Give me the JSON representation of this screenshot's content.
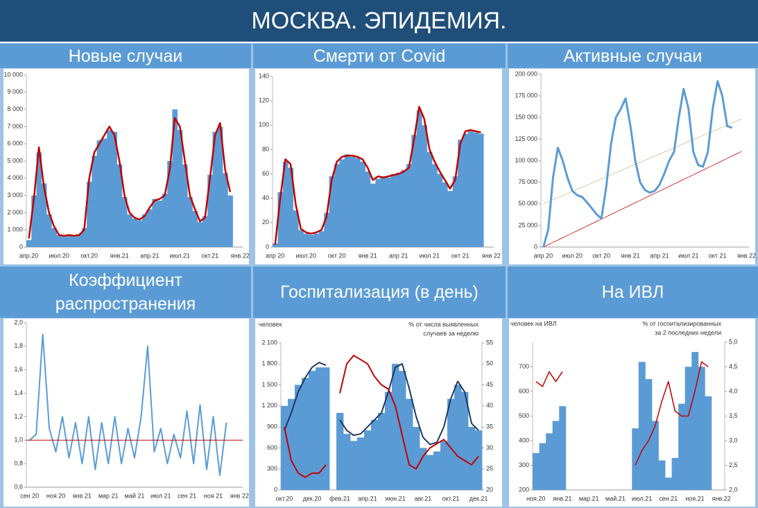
{
  "title": "МОСКВА. ЭПИДЕМИЯ.",
  "chart_data": [
    {
      "type": "bar",
      "title": "Новые случаи",
      "categories": [
        "апр.20",
        null,
        null,
        null,
        null,
        null,
        "июл.20",
        null,
        null,
        null,
        null,
        null,
        "окт.20",
        null,
        null,
        null,
        null,
        null,
        "янв.21",
        null,
        null,
        null,
        null,
        null,
        "апр.21",
        null,
        null,
        null,
        null,
        null,
        "июл.21",
        null,
        null,
        null,
        null,
        null,
        "окт.21",
        null,
        null,
        null,
        null,
        null,
        "янв.22"
      ],
      "ylim": [
        0,
        10000
      ],
      "yticks": [
        0,
        {
          "value": 1000,
          "label": "1 000"
        },
        {
          "value": 2000,
          "label": "2 000"
        },
        {
          "value": 3000,
          "label": "3 000"
        },
        {
          "value": 4000,
          "label": "4 000"
        },
        {
          "value": 5000,
          "label": "5 000"
        },
        {
          "value": 6000,
          "label": "6 000"
        },
        {
          "value": 7000,
          "label": "7 000"
        },
        {
          "value": 8000,
          "label": "8 000"
        },
        {
          "value": 9000,
          "label": "9 000"
        },
        {
          "value": 10000,
          "label": "10 000"
        }
      ],
      "series": [
        {
          "type": "bar",
          "color": "#5b9bd5",
          "values": [
            400,
            3000,
            5500,
            3700,
            1900,
            1100,
            700,
            600,
            650,
            600,
            750,
            1100,
            3800,
            5300,
            6200,
            6300,
            6800,
            6700,
            4800,
            2900,
            1900,
            1650,
            1550,
            1900,
            2200,
            2800,
            2700,
            3100,
            5000,
            8000,
            6800,
            4800,
            2900,
            2100,
            1450,
            1800,
            4200,
            6700,
            7000,
            4300,
            3000,
            null,
            null
          ]
        },
        {
          "type": "line",
          "color": "#c00000",
          "values": [
            500,
            2800,
            5800,
            3500,
            2000,
            1200,
            700,
            650,
            700,
            650,
            700,
            1000,
            4000,
            5500,
            6000,
            6500,
            7000,
            6500,
            5000,
            3000,
            2000,
            1700,
            1600,
            1800,
            2300,
            2700,
            2800,
            3000,
            4500,
            7500,
            7000,
            5000,
            3000,
            2200,
            1500,
            1700,
            4000,
            6500,
            7200,
            4500,
            3200,
            null,
            null
          ]
        }
      ]
    },
    {
      "type": "bar",
      "title": "Смерти от Covid",
      "categories": [
        "апр 20",
        null,
        null,
        null,
        null,
        null,
        "июл 20",
        null,
        null,
        null,
        null,
        null,
        "окт 20",
        null,
        null,
        null,
        null,
        null,
        "янв 21",
        null,
        null,
        null,
        null,
        null,
        "апр 21",
        null,
        null,
        null,
        null,
        null,
        "июл 21",
        null,
        null,
        null,
        null,
        null,
        "окт 21",
        null,
        null,
        null,
        null,
        null,
        "янв 22"
      ],
      "ylim": [
        0,
        140
      ],
      "yticks": [
        0,
        20,
        40,
        60,
        80,
        100,
        120,
        140
      ],
      "series": [
        {
          "type": "bar",
          "color": "#5b9bd5",
          "values": [
            3,
            45,
            70,
            65,
            30,
            14,
            11,
            10,
            11,
            13,
            28,
            58,
            68,
            72,
            76,
            74,
            73,
            70,
            62,
            52,
            56,
            58,
            57,
            60,
            61,
            63,
            68,
            92,
            112,
            100,
            78,
            68,
            60,
            53,
            46,
            58,
            88,
            93,
            95,
            94,
            93,
            null,
            null
          ]
        },
        {
          "type": "line",
          "color": "#c00000",
          "values": [
            2,
            40,
            72,
            68,
            35,
            15,
            12,
            11,
            12,
            14,
            25,
            55,
            70,
            74,
            75,
            75,
            74,
            72,
            65,
            55,
            58,
            57,
            58,
            59,
            60,
            62,
            65,
            88,
            115,
            105,
            80,
            70,
            62,
            55,
            48,
            55,
            85,
            95,
            96,
            95,
            94,
            null,
            null
          ]
        }
      ]
    },
    {
      "type": "line",
      "title": "Активные случаи",
      "categories": [
        "апр 20",
        null,
        null,
        null,
        null,
        null,
        "июл 20",
        null,
        null,
        null,
        null,
        null,
        "окт 20",
        null,
        null,
        null,
        null,
        null,
        "янв 21",
        null,
        null,
        null,
        null,
        null,
        "апр 21",
        null,
        null,
        null,
        null,
        null,
        "июл 21",
        null,
        null,
        null,
        null,
        null,
        "окт 21",
        null,
        null,
        null,
        null,
        null,
        "янв 22"
      ],
      "ylim": [
        0,
        200000
      ],
      "yticks": [
        0,
        {
          "value": 25000,
          "label": "25 000"
        },
        {
          "value": 50000,
          "label": "50 000"
        },
        {
          "value": 75000,
          "label": "75 000"
        },
        {
          "value": 100000,
          "label": "100 000"
        },
        {
          "value": 125000,
          "label": "125 000"
        },
        {
          "value": 150000,
          "label": "150 000"
        },
        {
          "value": 175000,
          "label": "175 000"
        },
        {
          "value": 200000,
          "label": "200 000"
        }
      ],
      "series": [
        {
          "type": "line",
          "color": "#c00000",
          "width": 0.8,
          "values": [
            0,
            2700,
            5400,
            8100,
            10800,
            13500,
            16200,
            18900,
            21600,
            24300,
            27000,
            29700,
            32400,
            35100,
            37800,
            40500,
            43200,
            45900,
            48600,
            51300,
            54000,
            56700,
            59400,
            62100,
            64800,
            67500,
            70200,
            72900,
            75600,
            78300,
            81000,
            83700,
            86400,
            89100,
            91800,
            94500,
            97200,
            99900,
            102600,
            105300,
            108000,
            110700,
            null
          ]
        },
        {
          "type": "line",
          "color": "#c9c48a",
          "width": 0.8,
          "values": [
            50000,
            52400,
            54800,
            57200,
            59600,
            62000,
            64400,
            66800,
            69200,
            71600,
            74000,
            76400,
            78800,
            81200,
            83600,
            86000,
            88400,
            90800,
            93200,
            95600,
            98000,
            100400,
            102800,
            105200,
            107600,
            110000,
            112400,
            114800,
            117200,
            119600,
            122000,
            124400,
            126800,
            129200,
            131600,
            134000,
            136400,
            138800,
            141200,
            143600,
            146000,
            148400,
            null
          ]
        },
        {
          "type": "line",
          "color": "#5b9bd5",
          "width": 3,
          "values": [
            0,
            20000,
            80000,
            115000,
            100000,
            80000,
            65000,
            60000,
            58000,
            52000,
            45000,
            38000,
            33000,
            70000,
            120000,
            150000,
            160000,
            172000,
            140000,
            100000,
            75000,
            66000,
            63000,
            65000,
            72000,
            85000,
            100000,
            110000,
            150000,
            183000,
            160000,
            110000,
            95000,
            93000,
            110000,
            160000,
            192000,
            175000,
            140000,
            138000,
            null,
            null,
            null
          ]
        }
      ]
    },
    {
      "type": "line",
      "title": "Коэффициент распространения",
      "categories": [
        "сен 20",
        null,
        null,
        null,
        "ноя 20",
        null,
        null,
        null,
        "янв 21",
        null,
        null,
        null,
        "мар 21",
        null,
        null,
        null,
        "май 21",
        null,
        null,
        null,
        "июл 21",
        null,
        null,
        null,
        "сен 21",
        null,
        null,
        null,
        "ноя 21",
        null,
        null,
        null,
        "янв 22"
      ],
      "ylim": [
        0.6,
        2.0
      ],
      "yticks": [
        {
          "value": 0.6,
          "label": "0,6"
        },
        {
          "value": 0.8,
          "label": "0,8"
        },
        {
          "value": 1.0,
          "label": "1,0"
        },
        {
          "value": 1.2,
          "label": "1,2"
        },
        {
          "value": 1.4,
          "label": "1,4"
        },
        {
          "value": 1.6,
          "label": "1,6"
        },
        {
          "value": 1.8,
          "label": "1,8"
        },
        {
          "value": 2.0,
          "label": "2,0"
        }
      ],
      "reference_line": 1,
      "reference_color": "#c00000",
      "series": [
        {
          "type": "line",
          "color": "#5b9bd5",
          "width": 2,
          "values": [
            1.0,
            1.05,
            1.9,
            1.1,
            0.9,
            1.2,
            0.85,
            1.15,
            0.8,
            1.2,
            0.75,
            1.15,
            0.8,
            1.2,
            0.8,
            1.1,
            0.85,
            1.2,
            1.8,
            0.9,
            1.1,
            0.8,
            1.05,
            0.85,
            1.25,
            0.8,
            1.3,
            0.75,
            1.2,
            0.7,
            1.15,
            null,
            null
          ]
        }
      ]
    },
    {
      "type": "bar",
      "title": "Госпитализация (в день)",
      "ylabel": "человек",
      "y2label": [
        "% от числа выявленных",
        "случаев за неделю"
      ],
      "categories": [
        "окт.20",
        null,
        null,
        null,
        "дек.20",
        null,
        null,
        null,
        "фев.21",
        null,
        null,
        null,
        "апр.21",
        null,
        null,
        null,
        "июн.21",
        null,
        null,
        null,
        "авг.21",
        null,
        null,
        null,
        "окт.21",
        null,
        null,
        null,
        "дек.21"
      ],
      "ylim": [
        0,
        2100
      ],
      "yticks": [
        0,
        300,
        600,
        900,
        {
          "value": 1200,
          "label": "1 200"
        },
        {
          "value": 1500,
          "label": "1 500"
        },
        {
          "value": 1800,
          "label": "1 800"
        },
        {
          "value": 2100,
          "label": "2 100"
        }
      ],
      "y2lim": [
        20,
        55
      ],
      "y2ticks": [
        20,
        25,
        30,
        35,
        40,
        45,
        50,
        55
      ],
      "series": [
        {
          "type": "bar",
          "color": "#5b9bd5",
          "values": [
            1200,
            1300,
            1500,
            1600,
            1700,
            1750,
            1750,
            null,
            1100,
            800,
            700,
            750,
            850,
            1000,
            1100,
            1400,
            1800,
            1700,
            1300,
            900,
            600,
            500,
            550,
            700,
            1300,
            1500,
            1400,
            900,
            850
          ]
        },
        {
          "type": "line",
          "color": "#1f3864",
          "width": 2,
          "values": [
            850,
            1100,
            1400,
            1600,
            1750,
            1820,
            1780,
            null,
            1000,
            850,
            780,
            800,
            900,
            1000,
            1100,
            1400,
            1750,
            1800,
            1450,
            1050,
            750,
            650,
            680,
            900,
            1300,
            1550,
            1400,
            950,
            850
          ]
        },
        {
          "type": "line",
          "color": "#c00000",
          "width": 2,
          "axis": "y2",
          "values": [
            35,
            27,
            24,
            23,
            24,
            24,
            26,
            null,
            43,
            50,
            52,
            51,
            50,
            47,
            45,
            44,
            40,
            33,
            26,
            25,
            28,
            30,
            31,
            32,
            30,
            28,
            27,
            26,
            28
          ]
        }
      ]
    },
    {
      "type": "bar",
      "title": "На ИВЛ",
      "ylabel": "человек на ИВЛ",
      "y2label": [
        "% от госпитализированных",
        "за 2 последних недели"
      ],
      "categories": [
        "ноя.20",
        null,
        null,
        null,
        "янв.21",
        null,
        null,
        null,
        "мар.21",
        null,
        null,
        null,
        "май.21",
        null,
        null,
        null,
        "июл.21",
        null,
        null,
        null,
        "сен.21",
        null,
        null,
        null,
        "ноя.21",
        null,
        null,
        null,
        "янв.22"
      ],
      "ylim": [
        200,
        800
      ],
      "yticks": [
        200,
        300,
        400,
        500,
        600,
        700
      ],
      "y2lim": [
        2,
        5
      ],
      "y2ticks": [
        {
          "value": 2,
          "label": "2,0"
        },
        {
          "value": 2.5,
          "label": "2,5"
        },
        {
          "value": 3,
          "label": "3,0"
        },
        {
          "value": 3.5,
          "label": "3,5"
        },
        {
          "value": 4,
          "label": "4,0"
        },
        {
          "value": 4.5,
          "label": "4,5"
        },
        {
          "value": 5,
          "label": "5,0"
        }
      ],
      "series": [
        {
          "type": "bar",
          "color": "#5b9bd5",
          "values": [
            350,
            390,
            430,
            480,
            540,
            null,
            null,
            null,
            null,
            null,
            null,
            null,
            null,
            null,
            null,
            450,
            720,
            650,
            480,
            320,
            250,
            330,
            550,
            700,
            760,
            700,
            580,
            null,
            null
          ]
        },
        {
          "type": "line",
          "color": "#c00000",
          "width": 1.5,
          "axis": "y2",
          "values": [
            4.2,
            4.1,
            4.4,
            4.2,
            4.4,
            null,
            null,
            null,
            null,
            null,
            null,
            null,
            null,
            null,
            null,
            2.5,
            2.8,
            3.0,
            3.3,
            3.8,
            4.2,
            3.6,
            3.5,
            3.5,
            4.0,
            4.6,
            4.5,
            null,
            null
          ]
        }
      ]
    }
  ]
}
